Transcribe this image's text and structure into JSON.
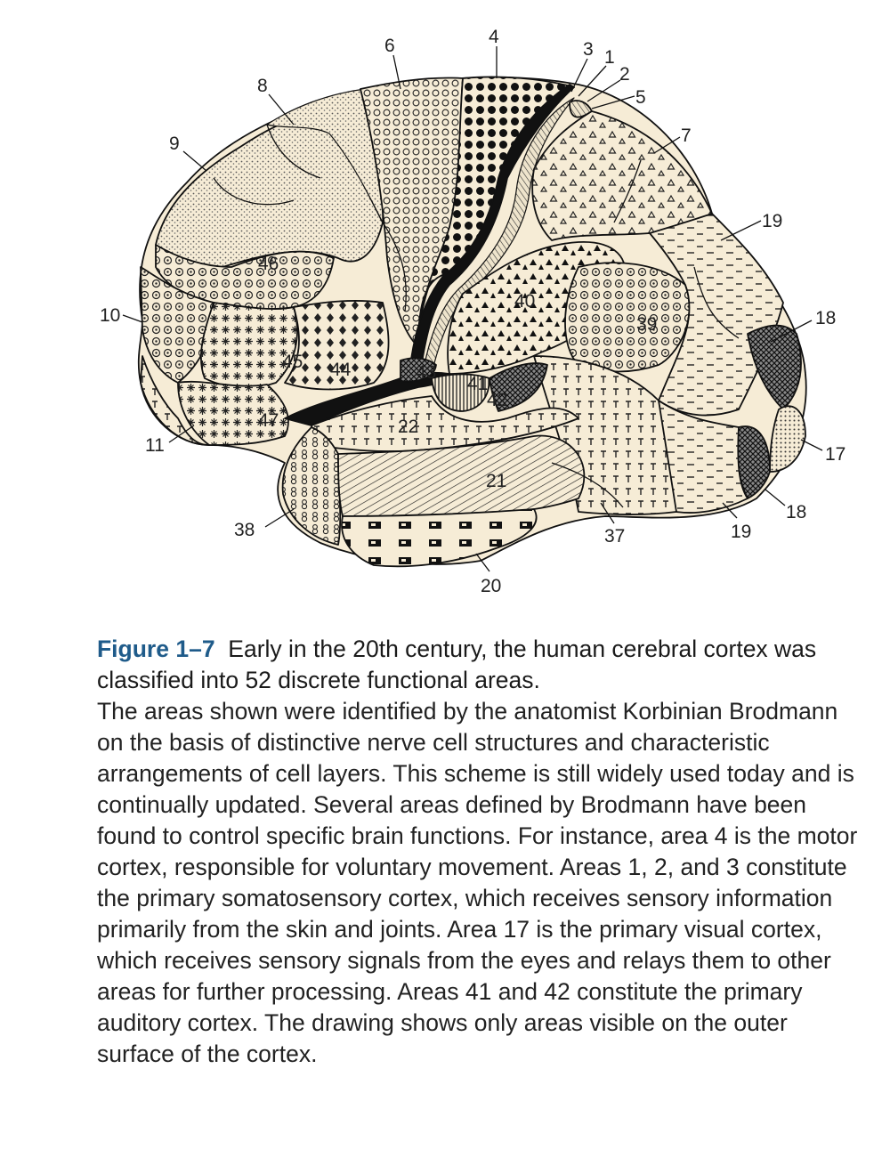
{
  "figure": {
    "labels": {
      "a4": "4",
      "a6": "6",
      "a3": "3",
      "a1": "1",
      "a2": "2",
      "a5": "5",
      "a8": "8",
      "a7": "7",
      "a9": "9",
      "a19a": "19",
      "a46": "46",
      "a40": "40",
      "a10": "10",
      "a39": "39",
      "a18a": "18",
      "a45": "45",
      "a44": "44",
      "a43": "43",
      "a41": "41",
      "a42": "42",
      "a22": "22",
      "a47": "47",
      "a11": "11",
      "a17": "17",
      "a21": "21",
      "a18b": "18",
      "a38": "38",
      "a37": "37",
      "a19b": "19",
      "a20": "20"
    },
    "colors": {
      "paper": "#f6ecd6",
      "ink": "#111111",
      "caption_accent": "#1f5b8a"
    }
  },
  "caption": {
    "figure_number": "Figure 1–7",
    "headline": "Early in the 20th century, the human cerebral cortex was classified into 52 discrete functional areas.",
    "body": "The areas shown were identified by the anatomist Korbinian Brodmann on the basis of distinctive nerve cell structures and characteristic arrangements of cell layers. This scheme is still widely used today and is continually updated. Several areas defined by Brodmann have been found to control specific brain functions. For instance, area 4 is the motor cortex, responsible for voluntary movement. Areas 1, 2, and 3 constitute the primary somatosensory cortex, which receives sensory information primarily from the skin and joints. Area 17 is the primary visual cortex, which receives sensory signals from the eyes and relays them to other areas for further processing. Areas 41 and 42 constitute the primary auditory cortex. The drawing shows only areas visible on the outer surface of the cortex."
  }
}
